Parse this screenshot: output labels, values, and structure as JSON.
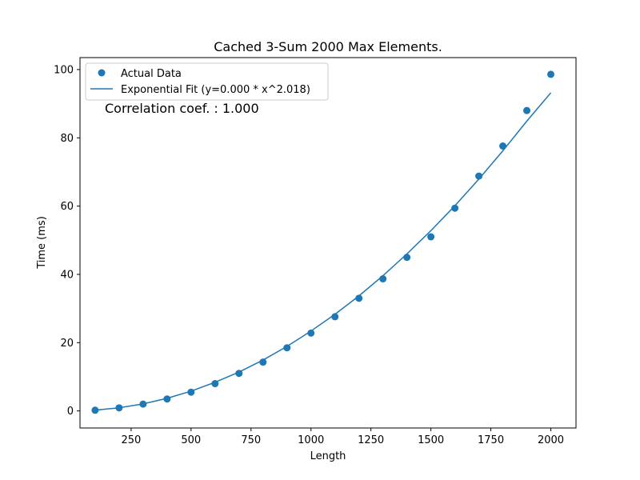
{
  "chart_data": {
    "type": "scatter",
    "title": "Cached 3-Sum 2000 Max Elements.",
    "xlabel": "Length",
    "ylabel": "Time (ms)",
    "xlim": [
      37,
      2105
    ],
    "ylim": [
      -5,
      103.5
    ],
    "xticks": [
      250,
      500,
      750,
      1000,
      1250,
      1500,
      1750,
      2000
    ],
    "yticks": [
      0,
      20,
      40,
      60,
      80,
      100
    ],
    "grid": false,
    "legend_position": "top-left",
    "color": "#1f77b4",
    "series": [
      {
        "name": "Actual Data",
        "kind": "scatter",
        "x": [
          100,
          200,
          300,
          400,
          500,
          600,
          700,
          800,
          900,
          1000,
          1100,
          1200,
          1300,
          1400,
          1500,
          1600,
          1700,
          1800,
          1900,
          2000
        ],
        "y": [
          0.2,
          0.9,
          2.0,
          3.5,
          5.5,
          8.0,
          11.0,
          14.3,
          18.5,
          22.8,
          27.6,
          33.0,
          38.7,
          45.0,
          51.0,
          59.4,
          68.8,
          77.6,
          88.0,
          98.6
        ]
      },
      {
        "name": "Exponential Fit (y=0.000 * x^2.018)",
        "kind": "line",
        "x": [
          100,
          200,
          300,
          400,
          500,
          600,
          700,
          800,
          900,
          1000,
          1100,
          1200,
          1300,
          1400,
          1500,
          1600,
          1700,
          1800,
          1900,
          2000
        ],
        "y": [
          0.22,
          0.92,
          2.07,
          3.7,
          5.8,
          8.4,
          11.4,
          14.9,
          18.9,
          23.4,
          28.3,
          33.7,
          39.6,
          46.0,
          52.8,
          60.1,
          67.9,
          76.2,
          84.9,
          93.2
        ]
      }
    ],
    "annotation": "Correlation coef. : 1.000"
  }
}
